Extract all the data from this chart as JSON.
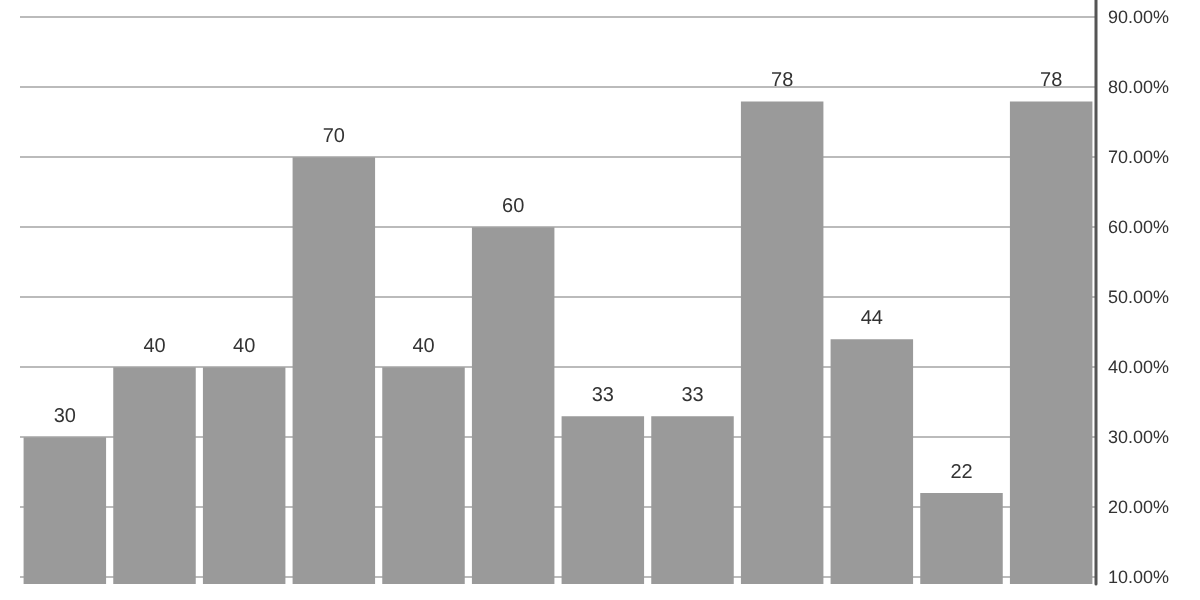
{
  "chart_data": {
    "type": "bar",
    "categories": [
      null,
      null,
      null,
      null,
      null,
      null,
      null,
      null,
      null,
      null,
      null,
      null
    ],
    "values": [
      30,
      40,
      40,
      70,
      40,
      60,
      33,
      33,
      78,
      44,
      22,
      78
    ],
    "color": "#9a9a9a",
    "data_labels": true,
    "ylim": [
      9,
      92.5
    ],
    "yticks": [
      {
        "value": 10,
        "label": "10.00%"
      },
      {
        "value": 20,
        "label": "20.00%"
      },
      {
        "value": 30,
        "label": "30.00%"
      },
      {
        "value": 40,
        "label": "40.00%"
      },
      {
        "value": 50,
        "label": "50.00%"
      },
      {
        "value": 60,
        "label": "60.00%"
      },
      {
        "value": 70,
        "label": "70.00%"
      },
      {
        "value": 80,
        "label": "80.00%"
      },
      {
        "value": 90,
        "label": "90.00%"
      }
    ],
    "grid": "y"
  }
}
